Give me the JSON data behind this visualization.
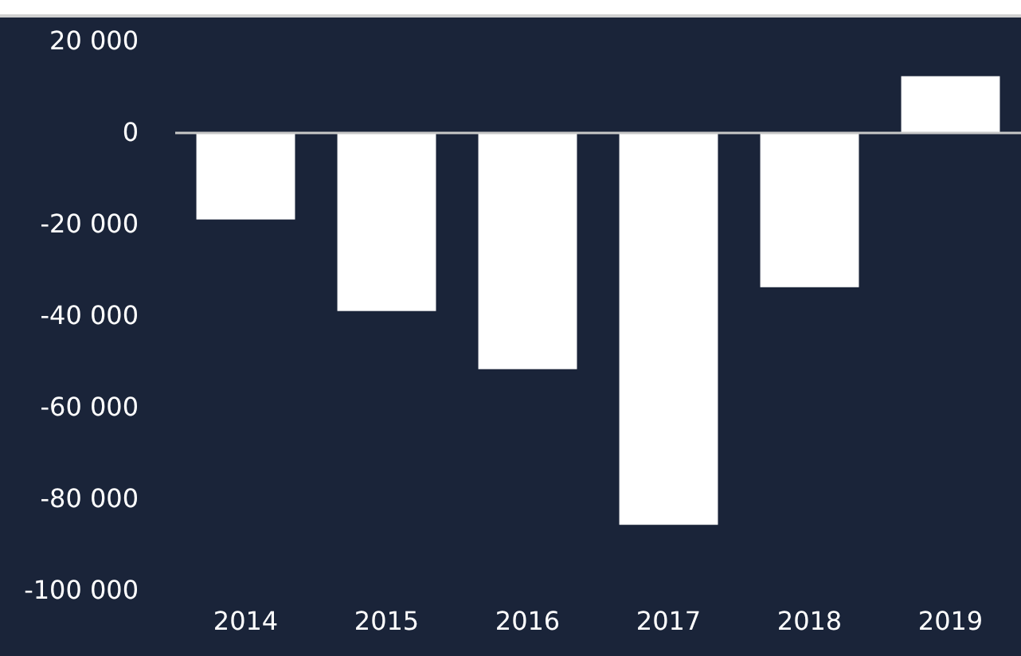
{
  "chart_data": {
    "type": "bar",
    "categories": [
      "2014",
      "2015",
      "2016",
      "2017",
      "2018",
      "2019"
    ],
    "values": [
      -18900,
      -38900,
      -51600,
      -85600,
      -33700,
      12400
    ],
    "color": "#ffffff",
    "ylim": [
      -100000,
      20000
    ],
    "yticks": [
      {
        "value": -100000,
        "label": "-100 000"
      },
      {
        "value": -80000,
        "label": "-80 000"
      },
      {
        "value": -60000,
        "label": "-60 000"
      },
      {
        "value": -40000,
        "label": "-40 000"
      },
      {
        "value": -20000,
        "label": "-20 000"
      },
      0,
      {
        "value": 20000,
        "label": "20 000"
      }
    ]
  }
}
